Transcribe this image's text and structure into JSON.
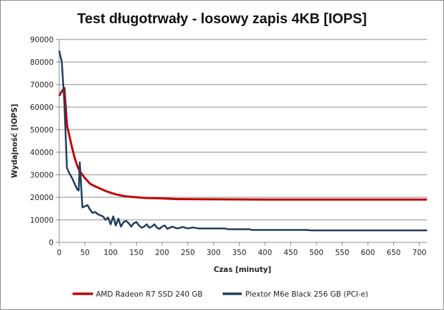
{
  "chart_data": {
    "type": "line",
    "title": "Test długotrwały - losowy zapis 4KB [IOPS]",
    "xlabel": "Czas [minuty]",
    "ylabel": "Wydajność [IOPS]",
    "xlim": [
      0,
      715
    ],
    "ylim": [
      0,
      90000
    ],
    "xticks": [
      0,
      50,
      100,
      150,
      200,
      250,
      300,
      350,
      400,
      450,
      500,
      550,
      600,
      650,
      700
    ],
    "yticks": [
      0,
      10000,
      20000,
      30000,
      40000,
      50000,
      60000,
      70000,
      80000,
      90000
    ],
    "grid": "horizontal",
    "legend_position": "bottom",
    "series": [
      {
        "name": "AMD Radeon R7 SSD 240 GB",
        "color": "#c00000",
        "points": [
          [
            0,
            65000
          ],
          [
            5,
            67000
          ],
          [
            10,
            68500
          ],
          [
            15,
            52000
          ],
          [
            20,
            47000
          ],
          [
            25,
            42000
          ],
          [
            30,
            37500
          ],
          [
            35,
            34000
          ],
          [
            40,
            31500
          ],
          [
            50,
            28500
          ],
          [
            60,
            26000
          ],
          [
            70,
            24800
          ],
          [
            80,
            23800
          ],
          [
            90,
            22800
          ],
          [
            100,
            22000
          ],
          [
            110,
            21300
          ],
          [
            120,
            20800
          ],
          [
            130,
            20400
          ],
          [
            150,
            20000
          ],
          [
            170,
            19700
          ],
          [
            200,
            19500
          ],
          [
            230,
            19200
          ],
          [
            300,
            19100
          ],
          [
            400,
            19000
          ],
          [
            500,
            19000
          ],
          [
            600,
            19000
          ],
          [
            715,
            19000
          ]
        ]
      },
      {
        "name": "Plextor M6e Black 256 GB (PCI-e)",
        "color": "#1f3d5e",
        "points": [
          [
            0,
            85000
          ],
          [
            5,
            80000
          ],
          [
            10,
            62000
          ],
          [
            15,
            33000
          ],
          [
            20,
            30500
          ],
          [
            25,
            28500
          ],
          [
            30,
            26000
          ],
          [
            35,
            23500
          ],
          [
            38,
            23000
          ],
          [
            40,
            35500
          ],
          [
            45,
            15500
          ],
          [
            50,
            16000
          ],
          [
            55,
            16500
          ],
          [
            60,
            14500
          ],
          [
            65,
            13000
          ],
          [
            70,
            13500
          ],
          [
            75,
            12500
          ],
          [
            80,
            12000
          ],
          [
            85,
            11500
          ],
          [
            90,
            10000
          ],
          [
            95,
            11000
          ],
          [
            100,
            8000
          ],
          [
            105,
            11500
          ],
          [
            110,
            7500
          ],
          [
            115,
            10500
          ],
          [
            120,
            7000
          ],
          [
            125,
            9000
          ],
          [
            130,
            9500
          ],
          [
            135,
            8500
          ],
          [
            140,
            7000
          ],
          [
            145,
            8500
          ],
          [
            150,
            9000
          ],
          [
            155,
            7500
          ],
          [
            160,
            6500
          ],
          [
            165,
            7000
          ],
          [
            170,
            8000
          ],
          [
            175,
            6500
          ],
          [
            180,
            7000
          ],
          [
            185,
            8000
          ],
          [
            190,
            6500
          ],
          [
            195,
            6000
          ],
          [
            200,
            7000
          ],
          [
            205,
            7500
          ],
          [
            210,
            6000
          ],
          [
            215,
            6500
          ],
          [
            220,
            7000
          ],
          [
            225,
            6500
          ],
          [
            230,
            6200
          ],
          [
            240,
            6800
          ],
          [
            250,
            6200
          ],
          [
            260,
            6600
          ],
          [
            270,
            6200
          ],
          [
            300,
            6200
          ],
          [
            320,
            6200
          ],
          [
            330,
            5800
          ],
          [
            370,
            5800
          ],
          [
            375,
            5500
          ],
          [
            480,
            5500
          ],
          [
            490,
            5300
          ],
          [
            715,
            5300
          ]
        ]
      }
    ]
  }
}
